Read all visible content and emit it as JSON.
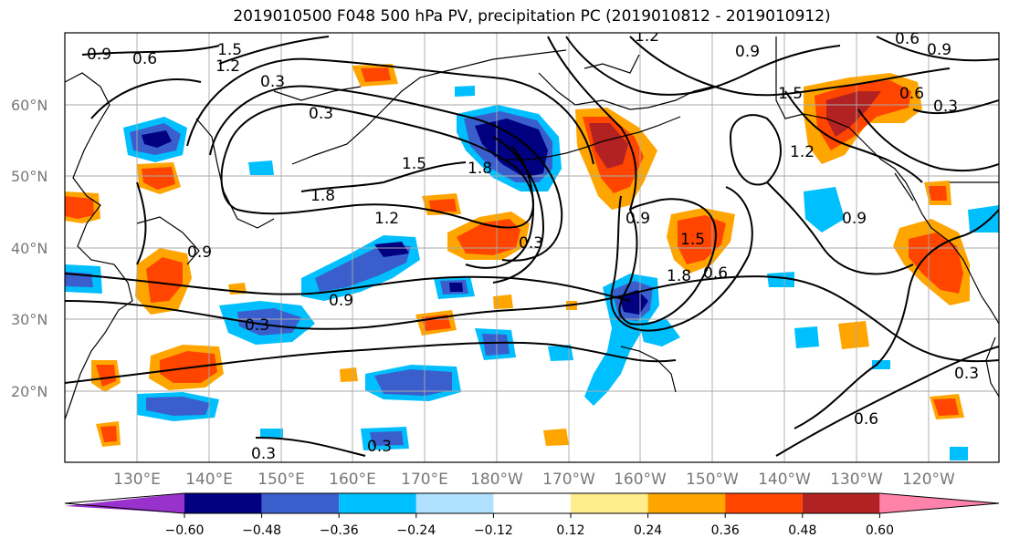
{
  "title": "2019010500 F048 500 hPa PV, precipitation PC (2019010812 - 2019010912)",
  "lat_labels": [
    "60°N",
    "50°N",
    "40°N",
    "30°N",
    "20°N"
  ],
  "lon_labels": [
    "130°E",
    "140°E",
    "150°E",
    "160°E",
    "170°E",
    "180°W",
    "170°W",
    "160°W",
    "150°W",
    "140°W",
    "130°W",
    "120°W"
  ],
  "colorbar": {
    "tick_labels": [
      "−0.60",
      "−0.48",
      "−0.36",
      "−0.24",
      "−0.12",
      "0.12",
      "0.24",
      "0.36",
      "0.48",
      "0.60"
    ],
    "colors": [
      "#9932cc",
      "#000080",
      "#3a5fcd",
      "#00bfff",
      "#b0e2ff",
      "#ffffff",
      "#ffec8b",
      "#ffa500",
      "#ff4500",
      "#b22222",
      "#ff82ab"
    ]
  },
  "contour_labels": [
    "0.9",
    "0.6",
    "1.5",
    "1.2",
    "0.3",
    "1.2",
    "0.9",
    "0.6",
    "0.9",
    "1.5",
    "1.8",
    "1.8",
    "1.2",
    "0.3",
    "0.9",
    "0.9",
    "0.6",
    "1.5",
    "1.8",
    "0.3",
    "0.9",
    "0.3",
    "0.3",
    "0.3",
    "0.6",
    "0.3",
    "0.6",
    "0.3",
    "1.5",
    "1.2",
    "0.9"
  ],
  "field_colors": {
    "land": "#000000",
    "grid": "#aaaaaa",
    "contour": "#000000"
  }
}
